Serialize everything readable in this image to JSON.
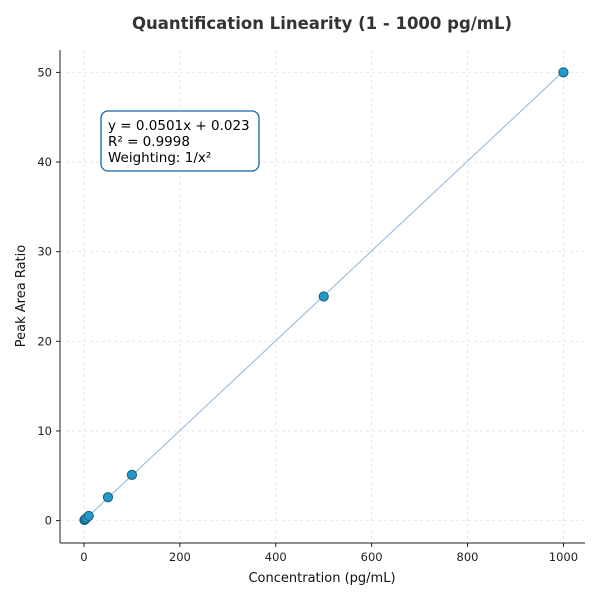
{
  "chart_data": {
    "type": "scatter",
    "title": "Quantification Linearity (1 - 1000 pg/mL)",
    "xlabel": "Concentration (pg/mL)",
    "ylabel": "Peak Area Ratio",
    "xlim": [
      -50,
      1045
    ],
    "ylim": [
      -2.5,
      52.5
    ],
    "xticks": [
      0,
      200,
      400,
      600,
      800,
      1000
    ],
    "yticks": [
      0,
      10,
      20,
      30,
      40,
      50
    ],
    "grid": true,
    "points": [
      {
        "x": 1,
        "y": 0.07
      },
      {
        "x": 2,
        "y": 0.12
      },
      {
        "x": 5,
        "y": 0.27
      },
      {
        "x": 10,
        "y": 0.52
      },
      {
        "x": 50,
        "y": 2.6
      },
      {
        "x": 100,
        "y": 5.1
      },
      {
        "x": 500,
        "y": 25.0
      },
      {
        "x": 1000,
        "y": 50.0
      }
    ],
    "fit_line": {
      "slope": 0.0501,
      "intercept": 0.023,
      "x_range": [
        1,
        1000
      ]
    },
    "annotation": {
      "lines": [
        "y = 0.0501x + 0.023",
        "R² = 0.9998",
        "Weighting: 1/x²"
      ]
    },
    "colors": {
      "point_fill": "#1f9bc7",
      "point_edge": "#1a5a80",
      "fit_line": "#9bbcdb",
      "annotation_border": "#1565a8"
    }
  }
}
